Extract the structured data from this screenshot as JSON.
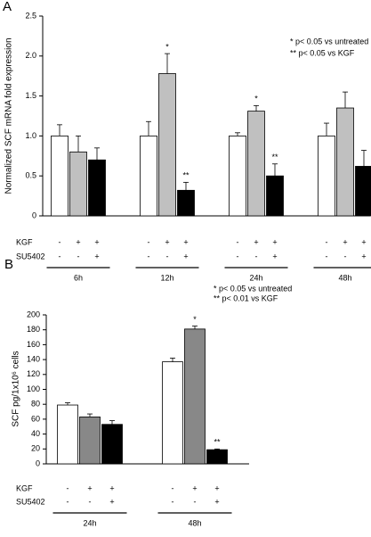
{
  "chart_data": [
    {
      "type": "bar",
      "panel_label": "A",
      "y_label": "Normalized SCF mRNA fold expression",
      "categories": [
        "6h",
        "12h",
        "24h",
        "48h"
      ],
      "ylim": [
        0,
        2.5
      ],
      "yticks": [
        0,
        0.5,
        {
          "value": 1,
          "label": "1.0"
        },
        1.5,
        {
          "value": 2,
          "label": "2.0"
        },
        2.5
      ],
      "series": [
        {
          "color": "#ffffff",
          "values": [
            1.0,
            1.0,
            1.0,
            1.0
          ],
          "errors": [
            0.14,
            0.18,
            0.04,
            0.16
          ],
          "markers": [
            null,
            null,
            null,
            null
          ]
        },
        {
          "color": "#c0c0c0",
          "values": [
            0.8,
            1.78,
            1.31,
            1.35
          ],
          "errors": [
            0.2,
            0.25,
            0.07,
            0.2
          ],
          "markers": [
            null,
            "*",
            "*",
            null
          ]
        },
        {
          "color": "#000000",
          "values": [
            0.7,
            0.32,
            0.5,
            0.62
          ],
          "errors": [
            0.15,
            0.1,
            0.15,
            0.2
          ],
          "markers": [
            null,
            "**",
            "**",
            null
          ]
        }
      ],
      "annotations": [
        "* p< 0.05 vs untreated",
        "** p< 0.05 vs KGF"
      ],
      "treatment_rows": [
        {
          "label": "KGF",
          "signs": [
            "-",
            "+",
            "+"
          ]
        },
        {
          "label": "SU5402",
          "signs": [
            "-",
            "-",
            "+"
          ]
        }
      ]
    },
    {
      "type": "bar",
      "panel_label": "B",
      "y_label": "SCF pg/1x10⁶ cells",
      "categories": [
        "24h",
        "48h"
      ],
      "ylim": [
        0,
        200
      ],
      "yticks": [
        0,
        20,
        40,
        60,
        80,
        100,
        120,
        140,
        160,
        180,
        200
      ],
      "series": [
        {
          "color": "#ffffff",
          "values": [
            79,
            137
          ],
          "errors": [
            3,
            5
          ],
          "markers": [
            null,
            null
          ]
        },
        {
          "color": "#888888",
          "values": [
            63,
            181
          ],
          "errors": [
            4,
            4
          ],
          "markers": [
            null,
            "*"
          ]
        },
        {
          "color": "#000000",
          "values": [
            53,
            19
          ],
          "errors": [
            5,
            1
          ],
          "markers": [
            null,
            "**"
          ]
        }
      ],
      "annotations": [
        "* p< 0.05 vs untreated",
        "** p< 0.01 vs KGF"
      ],
      "treatment_rows": [
        {
          "label": "KGF",
          "signs": [
            "-",
            "+",
            "+"
          ]
        },
        {
          "label": "SU5402",
          "signs": [
            "-",
            "-",
            "+"
          ]
        }
      ]
    }
  ]
}
